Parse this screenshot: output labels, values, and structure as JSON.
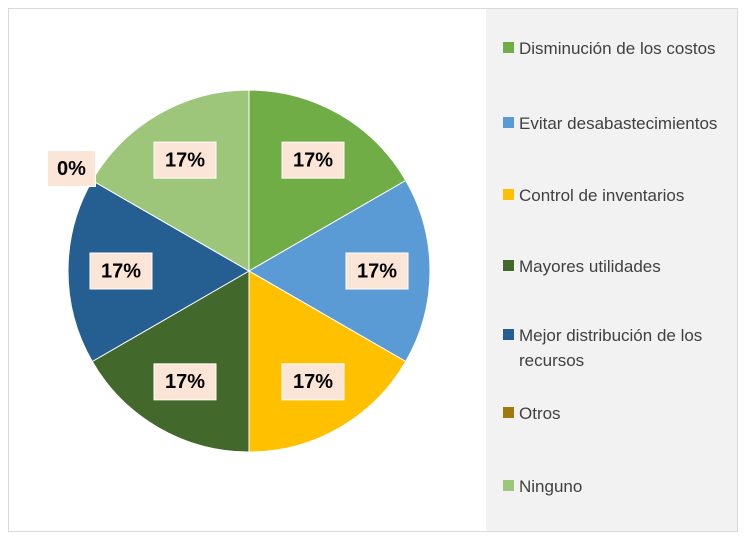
{
  "chart_data": {
    "type": "pie",
    "categories": [
      "Disminución de los costos",
      "Evitar desabastecimientos",
      "Control de inventarios",
      "Mayores utilidades",
      "Mejor distribución de los recursos",
      "Otros",
      "Ninguno"
    ],
    "values": [
      17,
      17,
      17,
      17,
      17,
      0,
      17
    ],
    "value_labels": [
      "17%",
      "17%",
      "17%",
      "17%",
      "17%",
      "0%",
      "17%"
    ],
    "colors": [
      "#70ad47",
      "#5b9bd5",
      "#ffc000",
      "#43682b",
      "#255e91",
      "#9e7a0b",
      "#9dc67a"
    ],
    "legend": "right"
  }
}
